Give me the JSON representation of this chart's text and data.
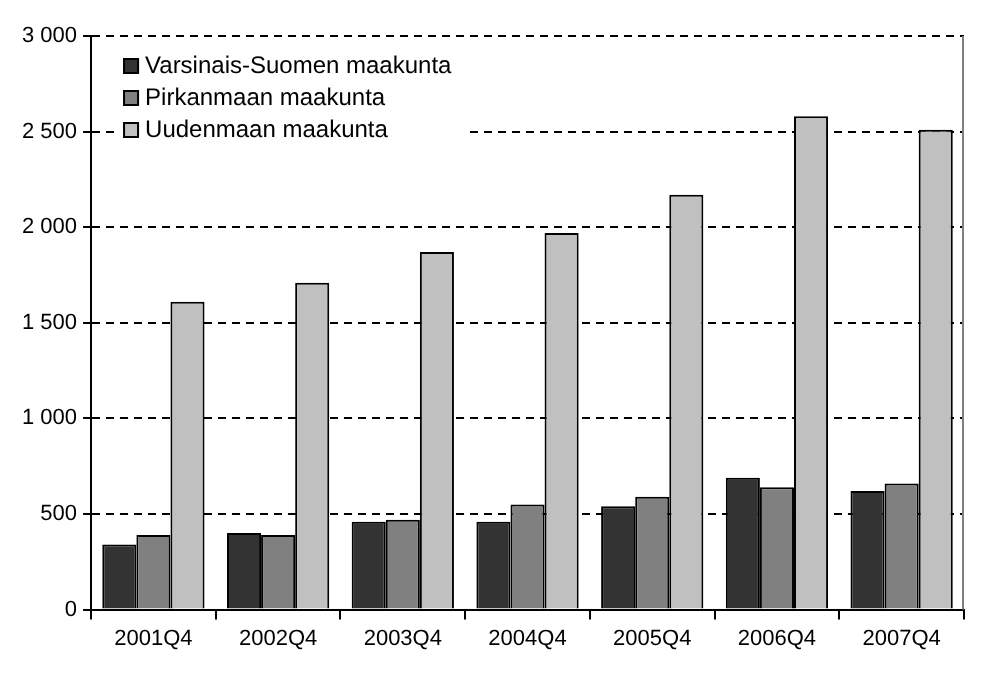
{
  "chart_data": {
    "type": "bar",
    "categories": [
      "2001Q4",
      "2002Q4",
      "2003Q4",
      "2004Q4",
      "2005Q4",
      "2006Q4",
      "2007Q4"
    ],
    "series": [
      {
        "name": "Varsinais-Suomen maakunta",
        "color": "#333333",
        "values": [
          340,
          400,
          460,
          460,
          540,
          690,
          620
        ]
      },
      {
        "name": "Pirkanmaan maakunta",
        "color": "#808080",
        "values": [
          390,
          390,
          470,
          550,
          590,
          640,
          660
        ]
      },
      {
        "name": "Uudenmaan maakunta",
        "color": "#c0c0c0",
        "values": [
          1610,
          1710,
          1870,
          1970,
          2170,
          2580,
          2510
        ]
      }
    ],
    "ylim": [
      0,
      3000
    ],
    "yticks": [
      0,
      {
        "value": 500,
        "label": "500"
      },
      {
        "value": 1000,
        "label": "1 000"
      },
      {
        "value": 1500,
        "label": "1 500"
      },
      {
        "value": 2000,
        "label": "2 000"
      },
      {
        "value": 2500,
        "label": "2 500"
      },
      {
        "value": 3000,
        "label": "3 000"
      }
    ],
    "grid": "y",
    "legend": "top left"
  }
}
